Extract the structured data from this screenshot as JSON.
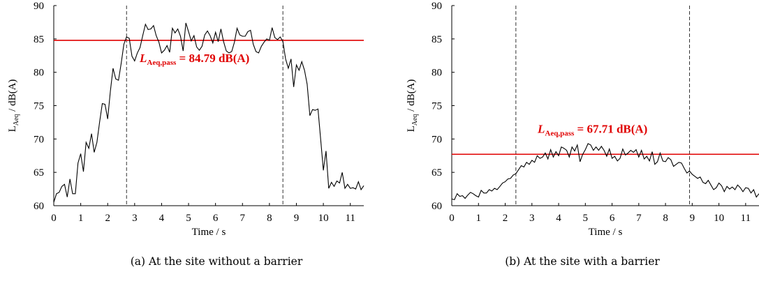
{
  "chart_data": [
    {
      "type": "line",
      "xlabel": "Time / s",
      "ylabel_main": "L",
      "ylabel_sub": "Aeq",
      "ylabel_rest": " / dB(A)",
      "xlim": [
        0,
        11.5
      ],
      "ylim": [
        60,
        90
      ],
      "xticks": [
        "0",
        "1",
        "2",
        "3",
        "4",
        "5",
        "6",
        "7",
        "8",
        "9",
        "10",
        "11"
      ],
      "yticks": [
        "60",
        "65",
        "70",
        "75",
        "80",
        "85",
        "90"
      ],
      "pass_level": 84.79,
      "pass_label_L": "L",
      "pass_label_sub": "Aeq,pass",
      "pass_label_value": " = 84.79 dB(A)",
      "vlines": [
        2.7,
        8.5
      ],
      "line_color": "#e00000",
      "caption": "(a) At the site without a barrier",
      "series": [
        {
          "x": [
            0.0,
            0.1,
            0.2,
            0.3,
            0.4,
            0.5,
            0.6,
            0.7,
            0.8,
            0.9,
            1.0,
            1.1,
            1.2,
            1.3,
            1.4,
            1.5,
            1.6,
            1.7,
            1.8,
            1.9,
            2.0,
            2.1,
            2.2,
            2.3,
            2.4,
            2.5,
            2.6,
            2.7,
            2.8,
            2.9,
            3.0,
            3.1,
            3.2,
            3.3,
            3.4,
            3.5,
            3.6,
            3.7,
            3.8,
            3.9,
            4.0,
            4.1,
            4.2,
            4.3,
            4.4,
            4.5,
            4.6,
            4.7,
            4.8,
            4.9,
            5.0,
            5.1,
            5.2,
            5.3,
            5.4,
            5.5,
            5.6,
            5.7,
            5.8,
            5.9,
            6.0,
            6.1,
            6.2,
            6.3,
            6.4,
            6.5,
            6.6,
            6.7,
            6.8,
            6.9,
            7.0,
            7.1,
            7.2,
            7.3,
            7.4,
            7.5,
            7.6,
            7.7,
            7.8,
            7.9,
            8.0,
            8.1,
            8.2,
            8.3,
            8.4,
            8.5,
            8.6,
            8.7,
            8.8,
            8.9,
            9.0,
            9.1,
            9.2,
            9.3,
            9.4,
            9.5,
            9.6,
            9.7,
            9.8,
            9.9,
            10.0,
            10.1,
            10.2,
            10.3,
            10.4,
            10.5,
            10.6,
            10.7,
            10.8,
            10.9,
            11.0,
            11.1,
            11.2,
            11.3,
            11.4,
            11.5
          ],
          "y": [
            60.5,
            61.8,
            62.0,
            62.9,
            63.2,
            61.3,
            64.0,
            61.8,
            61.8,
            66.4,
            67.8,
            65.1,
            69.5,
            68.6,
            70.8,
            68.0,
            69.5,
            72.5,
            75.3,
            75.2,
            73.0,
            77.2,
            80.6,
            79.0,
            78.8,
            81.3,
            84.2,
            85.3,
            85.1,
            82.4,
            81.7,
            82.9,
            83.7,
            85.5,
            87.2,
            86.4,
            86.5,
            87.0,
            85.5,
            84.5,
            82.9,
            83.3,
            84.0,
            83.0,
            86.6,
            85.9,
            86.5,
            85.4,
            83.2,
            87.4,
            86.1,
            84.7,
            85.5,
            83.8,
            83.3,
            83.9,
            85.6,
            86.2,
            85.5,
            84.4,
            86.0,
            84.6,
            86.5,
            84.6,
            83.2,
            82.9,
            83.1,
            84.5,
            86.6,
            85.6,
            85.4,
            85.4,
            86.1,
            86.3,
            84.2,
            83.1,
            82.9,
            83.9,
            84.5,
            85.0,
            84.8,
            86.7,
            85.2,
            84.9,
            85.3,
            84.6,
            82.0,
            80.6,
            82.0,
            77.8,
            81.1,
            80.3,
            81.6,
            80.3,
            78.2,
            73.5,
            74.4,
            74.3,
            74.5,
            70.0,
            65.3,
            68.2,
            62.6,
            63.5,
            62.9,
            63.7,
            63.4,
            65.0,
            62.6,
            63.2,
            62.6,
            62.7,
            62.5,
            63.6,
            62.4,
            63.0
          ]
        }
      ]
    },
    {
      "type": "line",
      "xlabel": "Time / s",
      "ylabel_main": "L",
      "ylabel_sub": "Aeq",
      "ylabel_rest": " / dB(A)",
      "xlim": [
        0,
        11.5
      ],
      "ylim": [
        60,
        90
      ],
      "xticks": [
        "0",
        "1",
        "2",
        "3",
        "4",
        "5",
        "6",
        "7",
        "8",
        "9",
        "10",
        "11"
      ],
      "yticks": [
        "60",
        "65",
        "70",
        "75",
        "80",
        "85",
        "90"
      ],
      "pass_level": 67.71,
      "pass_label_L": "L",
      "pass_label_sub": "Aeq,pass",
      "pass_label_value": " = 67.71 dB(A)",
      "vlines": [
        2.4,
        8.9
      ],
      "line_color": "#e00000",
      "caption": "(b) At the site with a barrier",
      "series": [
        {
          "x": [
            0.0,
            0.1,
            0.2,
            0.3,
            0.4,
            0.5,
            0.6,
            0.7,
            0.8,
            0.9,
            1.0,
            1.1,
            1.2,
            1.3,
            1.4,
            1.5,
            1.6,
            1.7,
            1.8,
            1.9,
            2.0,
            2.1,
            2.2,
            2.3,
            2.4,
            2.5,
            2.6,
            2.7,
            2.8,
            2.9,
            3.0,
            3.1,
            3.2,
            3.3,
            3.4,
            3.5,
            3.6,
            3.7,
            3.8,
            3.9,
            4.0,
            4.1,
            4.2,
            4.3,
            4.4,
            4.5,
            4.6,
            4.7,
            4.8,
            4.9,
            5.0,
            5.1,
            5.2,
            5.3,
            5.4,
            5.5,
            5.6,
            5.7,
            5.8,
            5.9,
            6.0,
            6.1,
            6.2,
            6.3,
            6.4,
            6.5,
            6.6,
            6.7,
            6.8,
            6.9,
            7.0,
            7.1,
            7.2,
            7.3,
            7.4,
            7.5,
            7.6,
            7.7,
            7.8,
            7.9,
            8.0,
            8.1,
            8.2,
            8.3,
            8.4,
            8.5,
            8.6,
            8.7,
            8.8,
            8.9,
            9.0,
            9.1,
            9.2,
            9.3,
            9.4,
            9.5,
            9.6,
            9.7,
            9.8,
            9.9,
            10.0,
            10.1,
            10.2,
            10.3,
            10.4,
            10.5,
            10.6,
            10.7,
            10.8,
            10.9,
            11.0,
            11.1,
            11.2,
            11.3,
            11.4,
            11.5
          ],
          "y": [
            61.0,
            60.9,
            61.8,
            61.4,
            61.5,
            61.1,
            61.6,
            62.0,
            61.8,
            61.5,
            61.3,
            62.3,
            61.9,
            61.9,
            62.4,
            62.2,
            62.6,
            62.4,
            62.9,
            63.4,
            63.6,
            64.0,
            64.1,
            64.6,
            64.8,
            65.4,
            66.0,
            65.8,
            66.5,
            66.2,
            66.8,
            66.5,
            67.5,
            67.1,
            67.3,
            67.9,
            67.0,
            68.4,
            67.3,
            68.1,
            67.5,
            68.8,
            68.6,
            68.3,
            67.3,
            68.8,
            68.2,
            69.1,
            66.6,
            67.7,
            68.4,
            69.3,
            69.1,
            68.3,
            68.8,
            68.3,
            68.9,
            68.3,
            67.4,
            68.5,
            67.1,
            67.4,
            66.7,
            67.1,
            68.5,
            67.6,
            67.9,
            68.3,
            68.0,
            68.4,
            67.3,
            68.3,
            67.0,
            67.4,
            66.7,
            68.1,
            66.2,
            66.6,
            67.9,
            66.7,
            66.6,
            67.2,
            66.9,
            65.9,
            66.2,
            66.5,
            66.4,
            65.6,
            64.9,
            65.2,
            64.7,
            64.4,
            64.1,
            64.3,
            63.5,
            63.3,
            63.8,
            63.1,
            62.4,
            62.7,
            63.4,
            63.0,
            62.1,
            62.9,
            62.5,
            62.8,
            62.4,
            63.1,
            62.7,
            62.1,
            62.7,
            62.6,
            61.9,
            62.4,
            61.3,
            61.8
          ]
        }
      ]
    }
  ]
}
